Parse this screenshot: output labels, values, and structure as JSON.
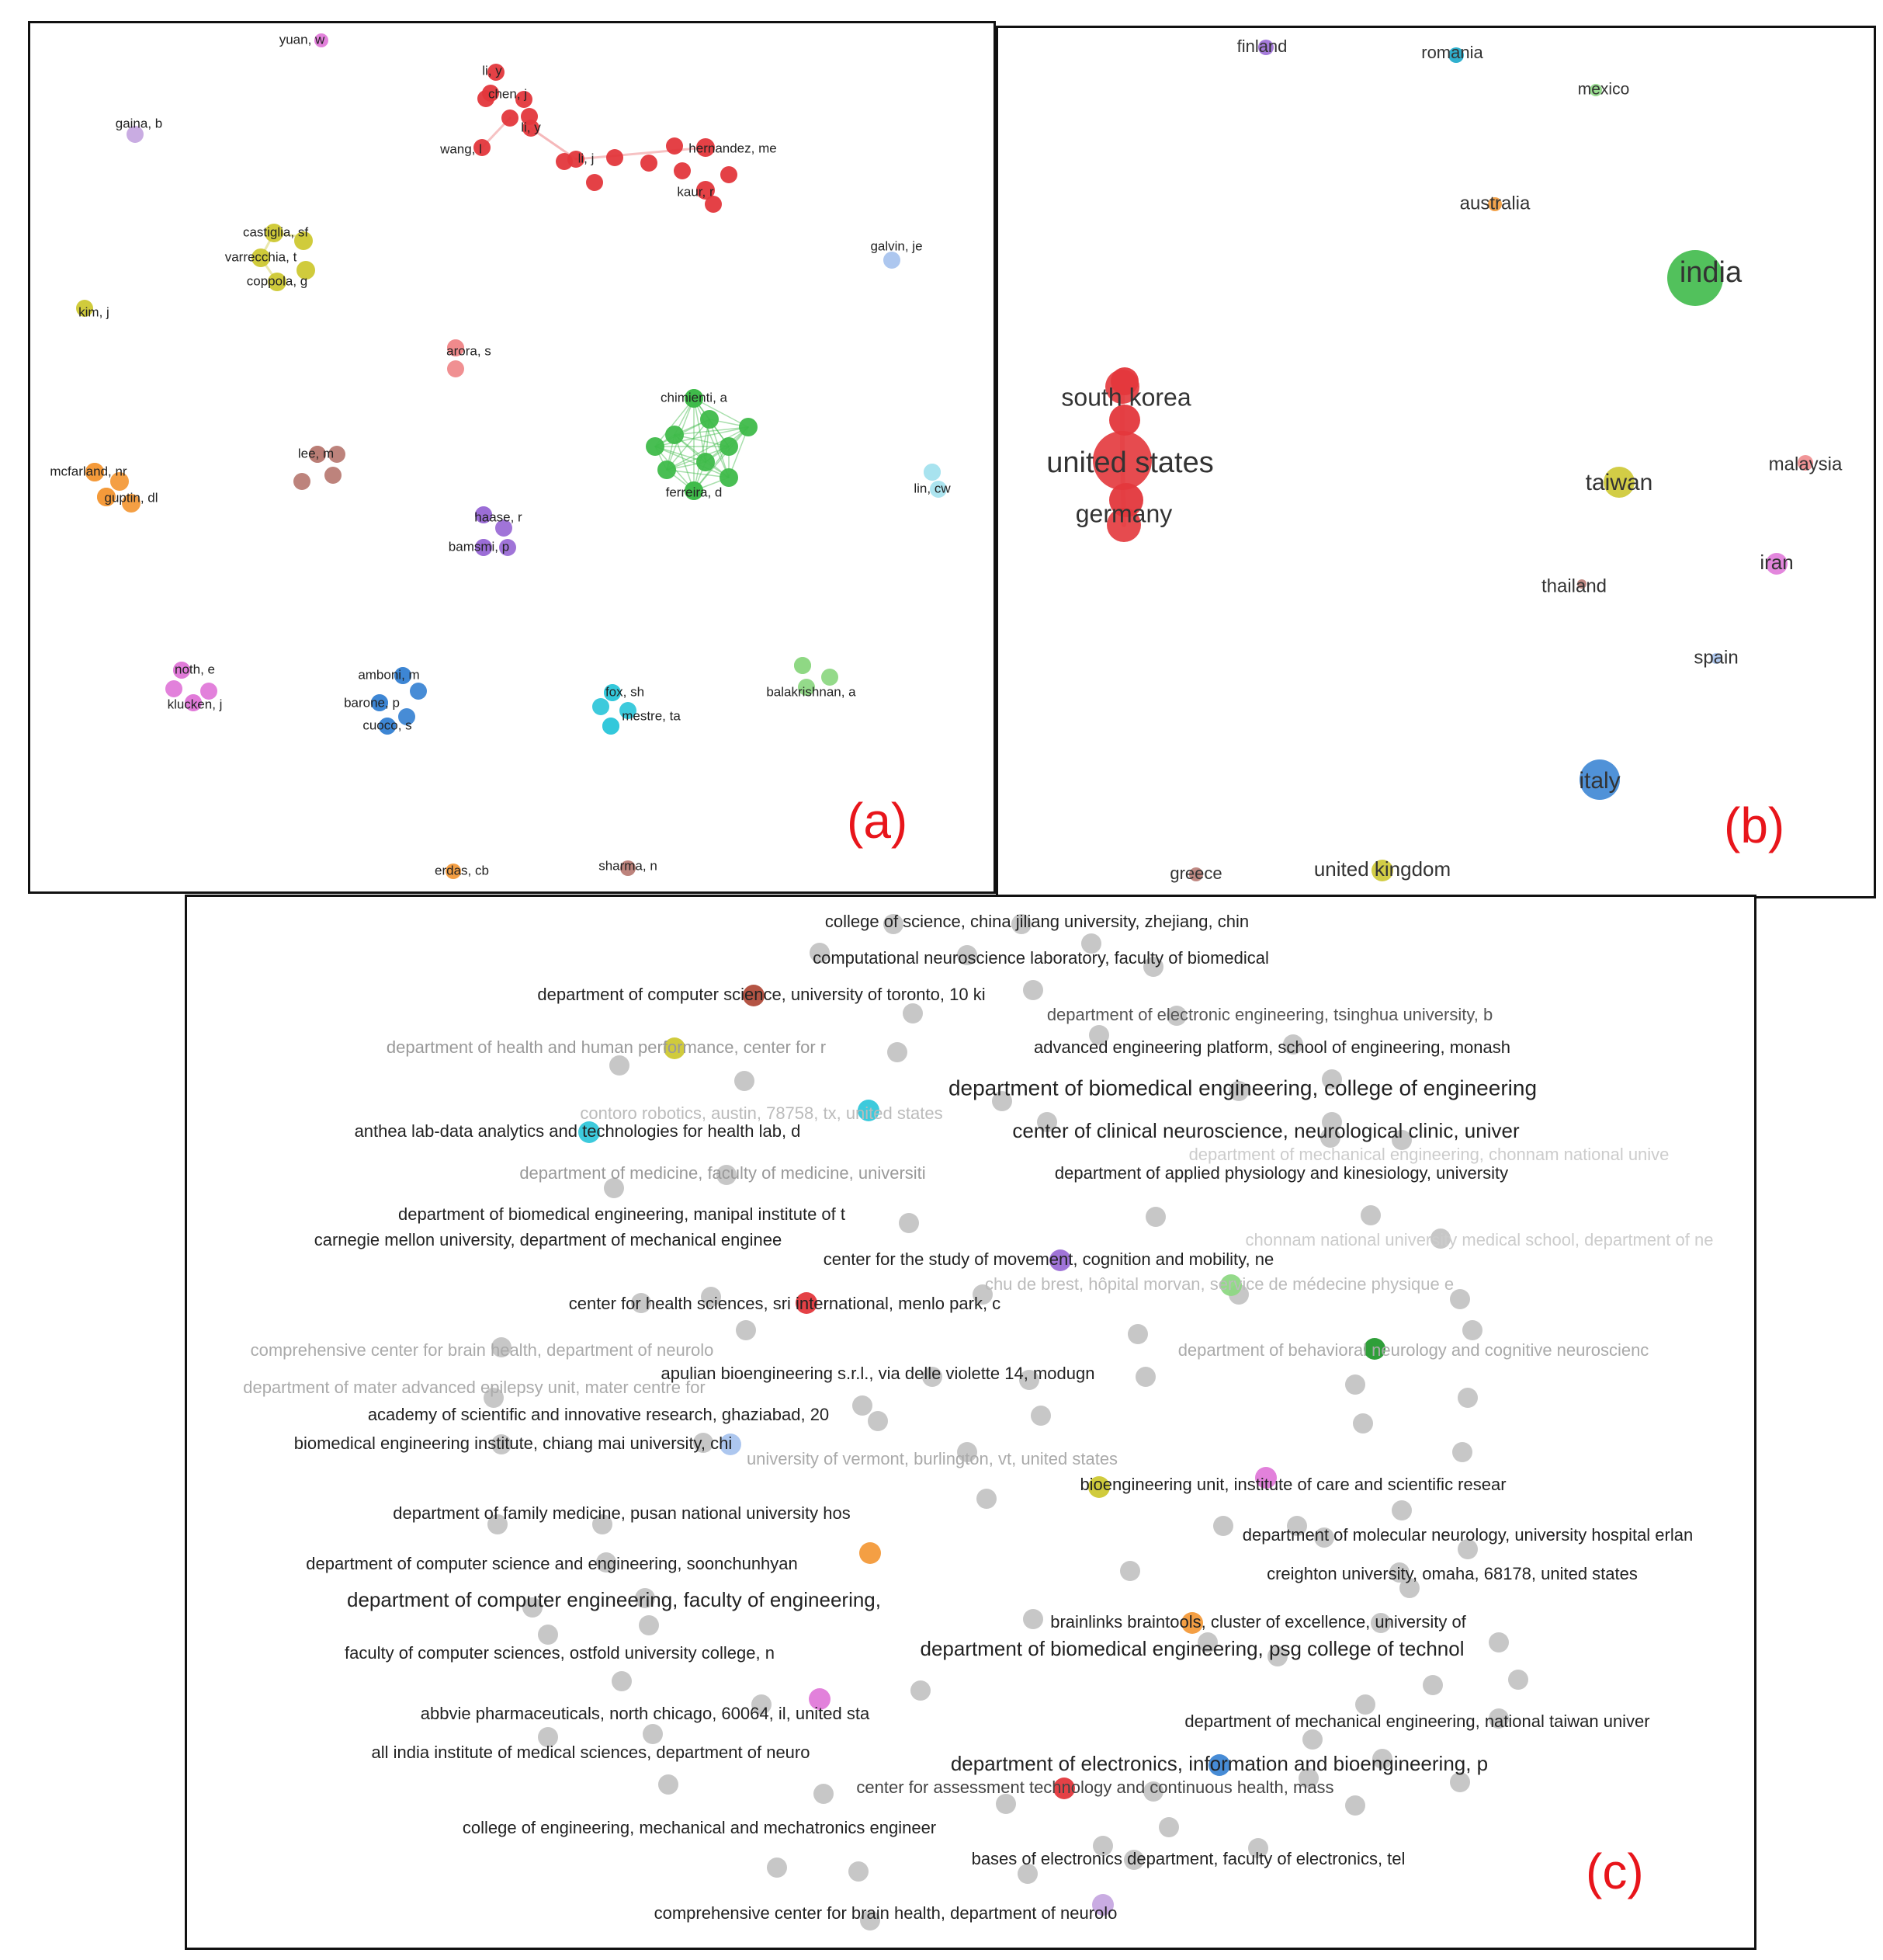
{
  "colors": {
    "red": "#e3373c",
    "lightred": "#ef8a8c",
    "green": "#3fba4a",
    "lightgreen": "#8ed884",
    "blue": "#3d86d4",
    "lightblue": "#a9c4ee",
    "cyan": "#33c7da",
    "lightcyan": "#a8e3ee",
    "olive": "#cdc832",
    "orange": "#f39a3a",
    "purple": "#9b6dd6",
    "lightpurple": "#c6a8e0",
    "pink": "#e07ad9",
    "brown": "#b97c75",
    "teal": "#1aa7c9",
    "darkred": "#b04b3a",
    "darkgreen": "#249a2e",
    "gray": "#c4c4c4",
    "label_letter": "#e8151b"
  },
  "panel_a": {
    "letter": "(a)",
    "authors": [
      {
        "label": "yuan, w",
        "color": "pink"
      },
      {
        "label": "li, y",
        "color": "red"
      },
      {
        "label": "chen, j",
        "color": "red"
      },
      {
        "label": "li, y",
        "color": "red"
      },
      {
        "label": "wang, l",
        "color": "red"
      },
      {
        "label": "li, j",
        "color": "red"
      },
      {
        "label": "hernandez, me",
        "color": "red"
      },
      {
        "label": "kaur, r",
        "color": "red"
      },
      {
        "label": "gaina, b",
        "color": "lightpurple"
      },
      {
        "label": "castiglia, sf",
        "color": "olive"
      },
      {
        "label": "varrecchia, t",
        "color": "olive"
      },
      {
        "label": "coppola, g",
        "color": "olive"
      },
      {
        "label": "galvin, je",
        "color": "lightblue"
      },
      {
        "label": "kim, j",
        "color": "olive"
      },
      {
        "label": "arora, s",
        "color": "lightred"
      },
      {
        "label": "chimienti, a",
        "color": "green"
      },
      {
        "label": "ferreira, d",
        "color": "green"
      },
      {
        "label": "lee, m",
        "color": "brown"
      },
      {
        "label": "mcfarland, nr",
        "color": "orange"
      },
      {
        "label": "guptin, dl",
        "color": "orange"
      },
      {
        "label": "lin, cw",
        "color": "lightcyan"
      },
      {
        "label": "haase, r",
        "color": "purple"
      },
      {
        "label": "bamsmi, p",
        "color": "purple"
      },
      {
        "label": "noth, e",
        "color": "pink"
      },
      {
        "label": "klucken, j",
        "color": "pink"
      },
      {
        "label": "amboni, m",
        "color": "blue"
      },
      {
        "label": "barone, p",
        "color": "blue"
      },
      {
        "label": "cuoco, s",
        "color": "blue"
      },
      {
        "label": "fox, sh",
        "color": "cyan"
      },
      {
        "label": "mestre, ta",
        "color": "cyan"
      },
      {
        "label": "balakrishnan, a",
        "color": "lightgreen"
      },
      {
        "label": "erdas, cb",
        "color": "orange"
      },
      {
        "label": "sharma, n",
        "color": "brown"
      }
    ]
  },
  "panel_b": {
    "letter": "(b)",
    "countries": [
      {
        "label": "finland",
        "color": "purple"
      },
      {
        "label": "romania",
        "color": "teal"
      },
      {
        "label": "mexico",
        "color": "lightgreen"
      },
      {
        "label": "australia",
        "color": "orange"
      },
      {
        "label": "india",
        "color": "green"
      },
      {
        "label": "south korea",
        "color": "red"
      },
      {
        "label": "united states",
        "color": "red"
      },
      {
        "label": "germany",
        "color": "red"
      },
      {
        "label": "taiwan",
        "color": "olive"
      },
      {
        "label": "malaysia",
        "color": "lightred"
      },
      {
        "label": "thailand",
        "color": "brown"
      },
      {
        "label": "iran",
        "color": "pink"
      },
      {
        "label": "spain",
        "color": "lightblue"
      },
      {
        "label": "italy",
        "color": "blue"
      },
      {
        "label": "greece",
        "color": "brown"
      },
      {
        "label": "united kingdom",
        "color": "olive"
      }
    ]
  },
  "panel_c": {
    "letter": "(c)",
    "institutions": [
      "college of science, china jiliang university, zhejiang, chin",
      "computational neuroscience laboratory, faculty of biomedical",
      "department of computer science, university of toronto, 10 ki",
      "department of electronic engineering, tsinghua university, b",
      "department of health and human performance, center for r",
      "advanced engineering platform, school of engineering, monash",
      "department of biomedical engineering, college of engineering",
      "contoro robotics, austin, 78758, tx, united states",
      "anthea lab-data analytics and technologies for health lab, d",
      "center of clinical neuroscience, neurological clinic, univer",
      "department of mechanical engineering, chonnam national unive",
      "department of medicine, faculty of medicine, universiti",
      "department of applied physiology and kinesiology, university",
      "department of biomedical engineering, manipal institute of t",
      "carnegie mellon university, department of mechanical enginee",
      "chonnam national university medical school, department of ne",
      "center for the study of movement, cognition and mobility, ne",
      "chu de brest, hôpital morvan, service de médecine physique e",
      "center for health sciences, sri international, menlo park, c",
      "comprehensive center for brain health, department of neurolo",
      "department of behavioral neurology and cognitive neuroscienc",
      "apulian bioengineering s.r.l., via delle violette 14, modugn",
      "department of mater advanced epilepsy unit, mater centre for",
      "academy of scientific and innovative research, ghaziabad, 20",
      "biomedical engineering institute, chiang mai university, chi",
      "university of vermont, burlington, vt, united states",
      "bioengineering unit, institute of care and scientific resear",
      "department of family medicine, pusan national university hos",
      "department of molecular neurology, university hospital erlan",
      "department of computer science and engineering, soonchunhyan",
      "creighton university, omaha, 68178, united states",
      "department of computer engineering, faculty of engineering,",
      "brainlinks braintools, cluster of excellence, university of",
      "faculty of computer sciences, ostfold university college, n",
      "department of biomedical engineering, psg college of technol",
      "abbvie pharmaceuticals, north chicago, 60064, il, united sta",
      "department of mechanical engineering, national taiwan univer",
      "all india institute of medical sciences, department of neuro",
      "department of electronics, information and bioengineering, p",
      "center for assessment technology and continuous health, mass",
      "college of engineering, mechanical and mechatronics engineer",
      "bases of electronics department, faculty of electronics, tel",
      "comprehensive center for brain health, department of neurolo"
    ]
  }
}
